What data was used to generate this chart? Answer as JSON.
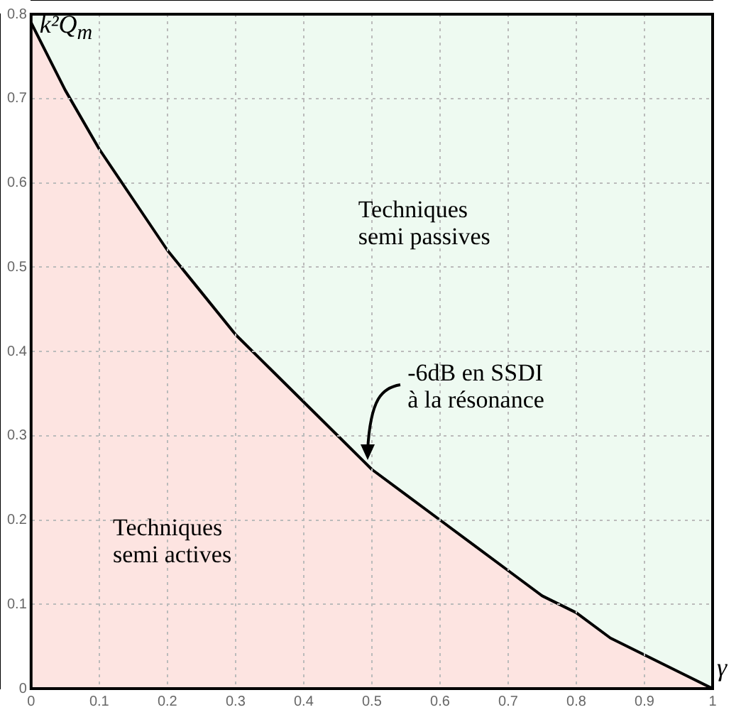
{
  "chart_data": {
    "type": "area",
    "xlabel": "γ",
    "ylabel": "k²Q$_{m}$",
    "x": [
      0,
      0.05,
      0.1,
      0.15,
      0.2,
      0.25,
      0.3,
      0.35,
      0.4,
      0.45,
      0.5,
      0.55,
      0.6,
      0.65,
      0.7,
      0.75,
      0.8,
      0.85,
      0.9,
      0.95,
      1
    ],
    "series": [
      {
        "color": "#fde4e1",
        "values": [
          0.79,
          0.71,
          0.64,
          0.58,
          0.52,
          0.47,
          0.42,
          0.38,
          0.34,
          0.3,
          0.26,
          0.23,
          0.2,
          0.17,
          0.14,
          0.11,
          0.09,
          0.06,
          0.04,
          0.02,
          0
        ]
      }
    ],
    "xlim": [
      0,
      1
    ],
    "xticks": [
      0,
      0.1,
      0.2,
      0.3,
      0.4,
      0.5,
      0.6,
      0.7,
      0.8,
      0.9,
      1
    ],
    "ylim": [
      0,
      0.8
    ],
    "yticks": [
      0,
      0.1,
      0.2,
      0.3,
      0.4,
      0.5,
      0.6,
      0.7,
      0.8
    ],
    "grid": true,
    "legend": false,
    "marker": "none",
    "line_style": "solid",
    "bands": [
      {
        "axis": "y",
        "from": 0,
        "to": 0.8,
        "color": "#eefaf1"
      }
    ],
    "annotations": [
      "Techniques\nsemi passives",
      {
        "text": "-6dB en SSDI\nà la résonance",
        "x": 0.49,
        "y": 0.27
      },
      "Techniques\nsemi actives"
    ]
  }
}
